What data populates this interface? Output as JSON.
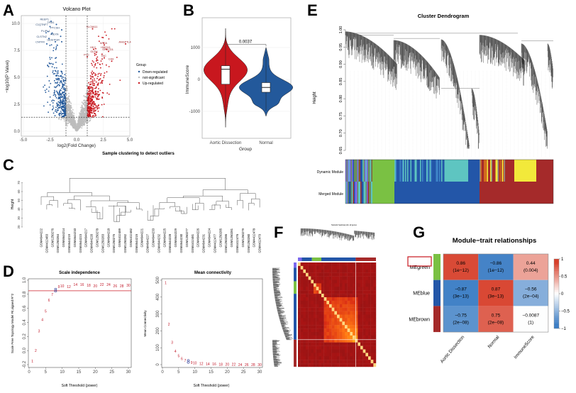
{
  "panels": {
    "A": "A",
    "B": "B",
    "C": "C",
    "D": "D",
    "E": "E",
    "F": "F",
    "G": "G"
  },
  "colors": {
    "down": "#23599b",
    "ns": "#bdbdbd",
    "up": "#c8171e",
    "green": "#7ac143",
    "blue": "#2356a8",
    "turquoise": "#5ec5c1",
    "brown": "#a52a2a",
    "yellow": "#f2e93a",
    "red_line": "#d9545c",
    "pos": "#d7402b",
    "neg": "#3a7cc4"
  },
  "chart_data": [
    {
      "id": "volcano",
      "type": "scatter",
      "title": "Volcano Plot",
      "xlabel": "log2(Fold Change)",
      "ylabel": "−log10(P Value)",
      "xlim": [
        -5,
        5
      ],
      "ylim": [
        0,
        10.5
      ],
      "xticks": [
        "-5.0",
        "-2.5",
        "0.0",
        "2.5",
        "5.0"
      ],
      "yticks": [
        "0.0",
        "2.5",
        "5.0",
        "7.5",
        "10.0"
      ],
      "fc_threshold": [
        -1,
        1
      ],
      "p_threshold_log": 1.3,
      "grid": true,
      "legend": {
        "title": "Group",
        "placement": "right",
        "entries": [
          "Down-regulated",
          "not-significant",
          "Up-regulated"
        ]
      },
      "labeled_genes": [
        {
          "gene": "REEP1",
          "x": -2.4,
          "y": 10.2,
          "group": "down"
        },
        {
          "gene": "TPM1",
          "x": -1.9,
          "y": 9.9,
          "group": "down"
        },
        {
          "gene": "C1QTNF7",
          "x": -2.5,
          "y": 9.7,
          "group": "down"
        },
        {
          "gene": "PTCSH",
          "x": -1.4,
          "y": 9.4,
          "group": "down"
        },
        {
          "gene": "PLIPL1",
          "x": -2.3,
          "y": 9.1,
          "group": "down"
        },
        {
          "gene": "NEXN",
          "x": -1.5,
          "y": 8.8,
          "group": "down"
        },
        {
          "gene": "CLSTN2",
          "x": -2.6,
          "y": 8.6,
          "group": "down"
        },
        {
          "gene": "GEM",
          "x": -2.0,
          "y": 8.3,
          "group": "down"
        },
        {
          "gene": "PGR",
          "x": -1.4,
          "y": 8.3,
          "group": "down"
        },
        {
          "gene": "CNTFR",
          "x": -2.8,
          "y": 8.1,
          "group": "down"
        },
        {
          "gene": "SLC6A11",
          "x": 1.5,
          "y": 9.5,
          "group": "up"
        },
        {
          "gene": "MT2A",
          "x": 2.6,
          "y": 8.0,
          "group": "up"
        },
        {
          "gene": "ANGPTL4",
          "x": 4.6,
          "y": 8.1,
          "group": "up"
        },
        {
          "gene": "HK2",
          "x": 1.6,
          "y": 7.6,
          "group": "up"
        },
        {
          "gene": "HMOX1",
          "x": 2.8,
          "y": 7.6,
          "group": "up"
        },
        {
          "gene": "GLRX",
          "x": 1.7,
          "y": 7.2,
          "group": "up"
        },
        {
          "gene": "SPOCD1",
          "x": 3.0,
          "y": 7.4,
          "group": "up"
        },
        {
          "gene": "PYC",
          "x": 1.0,
          "y": 6.9,
          "group": "up"
        },
        {
          "gene": "TNC",
          "x": 2.6,
          "y": 6.8,
          "group": "up"
        },
        {
          "gene": "CA9",
          "x": 3.3,
          "y": 6.5,
          "group": "up"
        }
      ]
    },
    {
      "id": "violin",
      "type": "violin",
      "xlabel": "Group",
      "ylabel": "ImmuneScore",
      "categories": [
        "Aortic Dissection",
        "Normal"
      ],
      "ylim": [
        -1700,
        1800
      ],
      "yticks": [
        "1000",
        "0",
        "-1000"
      ],
      "p_value": "0.0037",
      "series": [
        {
          "name": "Aortic Dissection",
          "min": -1500,
          "q1": -150,
          "median": 320,
          "q3": 430,
          "max": 1600,
          "color": "#c8171e"
        },
        {
          "name": "Normal",
          "min": -1150,
          "q1": -400,
          "median": -250,
          "q3": -100,
          "max": 1000,
          "color": "#23599b"
        }
      ]
    },
    {
      "id": "sample-clustering",
      "type": "dendrogram",
      "title": "Sample clustering to detect outliers",
      "ylabel": "Height",
      "ylim": [
        20,
        70
      ],
      "yticks": [
        "20",
        "30",
        "40",
        "50",
        "60",
        "70"
      ],
      "leaves": [
        "GSM4644222",
        "GSM4412483",
        "GSM1250276",
        "GSM1250284",
        "GSM4644214",
        "GSM4644219",
        "GSM4644210",
        "GSM4644223",
        "GSM4644217",
        "GSM4644220",
        "GSM1250278",
        "GSM1250283",
        "GSM4644218",
        "GSM1250275",
        "GSM4412489",
        "GSM1250282",
        "GSM4412482",
        "GSM4644215",
        "GSM4644221",
        "GSM4644227",
        "GSM4644233",
        "GSM4644232",
        "GSM4644225",
        "GSM4644228",
        "GSM4644229",
        "GSM4644230",
        "GSM1250277",
        "GSM4412481",
        "GSM4644226",
        "GSM4644231",
        "GSM4644224",
        "GSM4412477",
        "GSM1250285",
        "GSM1250286",
        "GSM1250281",
        "GSM4412476",
        "GSM1250279",
        "GSM1250280",
        "GSM4412478",
        "GSM4412479"
      ]
    },
    {
      "id": "scale-independence",
      "type": "scatter",
      "title": "Scale independence",
      "xlabel": "Soft Threshold (power)",
      "ylabel": "Scale Free Topology Model Fit,signed R^2",
      "xlim": [
        0,
        30
      ],
      "ylim": [
        -0.2,
        1.0
      ],
      "xticks": [
        "0",
        "5",
        "10",
        "15",
        "20",
        "25",
        "30"
      ],
      "yticks": [
        "-0.2",
        "0.0",
        "0.2",
        "0.4",
        "0.6",
        "0.8",
        "1.0"
      ],
      "threshold": 0.85,
      "selected_power": 8,
      "x": [
        1,
        2,
        3,
        4,
        5,
        6,
        7,
        8,
        9,
        10,
        12,
        14,
        16,
        18,
        20,
        22,
        24,
        26,
        28,
        30
      ],
      "values": [
        -0.15,
        0.0,
        0.28,
        0.44,
        0.56,
        0.72,
        0.8,
        0.85,
        0.91,
        0.92,
        0.91,
        0.94,
        0.94,
        0.93,
        0.92,
        0.94,
        0.94,
        0.92,
        0.92,
        0.93
      ]
    },
    {
      "id": "mean-connectivity",
      "type": "scatter",
      "title": "Mean connectivity",
      "xlabel": "Soft Threshold (power)",
      "ylabel": "Mean Connectivity",
      "xlim": [
        0,
        30
      ],
      "ylim": [
        0,
        500
      ],
      "xticks": [
        "0",
        "5",
        "10",
        "15",
        "20",
        "25",
        "30"
      ],
      "yticks": [
        "0",
        "100",
        "200",
        "300",
        "400",
        "500"
      ],
      "selected_power": 8,
      "x": [
        1,
        2,
        3,
        4,
        5,
        6,
        7,
        8,
        9,
        10,
        12,
        14,
        16,
        18,
        20,
        22,
        24,
        26,
        28,
        30
      ],
      "values": [
        485,
        240,
        133,
        80,
        52,
        35,
        25,
        15,
        12,
        10,
        7,
        5,
        4,
        3,
        2,
        2,
        1,
        1,
        1,
        1
      ]
    },
    {
      "id": "cluster-dendrogram",
      "type": "dendrogram",
      "title": "Cluster Dendrogram",
      "ylabel": "Height",
      "ylim": [
        0.65,
        1.0
      ],
      "yticks": [
        "0.65",
        "0.70",
        "0.75",
        "0.80",
        "0.85",
        "0.90",
        "0.95",
        "1.00"
      ],
      "color_rows": [
        "Dynamic Module",
        "Merged Module"
      ],
      "merged_modules": [
        "mixed",
        "green",
        "blue",
        "brown"
      ]
    },
    {
      "id": "tom-heatmap",
      "type": "heatmap",
      "title": "Network heatmap plot, all genes",
      "modules": [
        "green",
        "blue",
        "brown"
      ]
    },
    {
      "id": "module-trait",
      "type": "heatmap",
      "title": "Module−trait relationships",
      "rows": [
        "MEgreen",
        "MEblue",
        "MEbrown"
      ],
      "row_colors": [
        "#7ac143",
        "#2356a8",
        "#a52a2a"
      ],
      "highlighted_row": "MEgreen",
      "columns": [
        "Aortic Dissection",
        "Normal",
        "ImmuneScore"
      ],
      "values": [
        [
          0.86,
          -0.86,
          0.44
        ],
        [
          -0.87,
          0.87,
          -0.56
        ],
        [
          -0.75,
          0.75,
          -0.0087
        ]
      ],
      "labels": [
        [
          "0.86",
          "−0.86",
          "0.44"
        ],
        [
          "−0.87",
          "0.87",
          "−0.56"
        ],
        [
          "−0.75",
          "0.75",
          "−0.0087"
        ]
      ],
      "pvalues": [
        [
          "(1e−12)",
          "(1e−12)",
          "(0.004)"
        ],
        [
          "(3e−13)",
          "(3e−13)",
          "(2e−04)"
        ],
        [
          "(2e−08)",
          "(2e−08)",
          "(1)"
        ]
      ],
      "colorbar_ticks": [
        "1",
        "0.5",
        "0",
        "−0.5",
        "−1"
      ],
      "zlim": [
        -1,
        1
      ]
    }
  ]
}
